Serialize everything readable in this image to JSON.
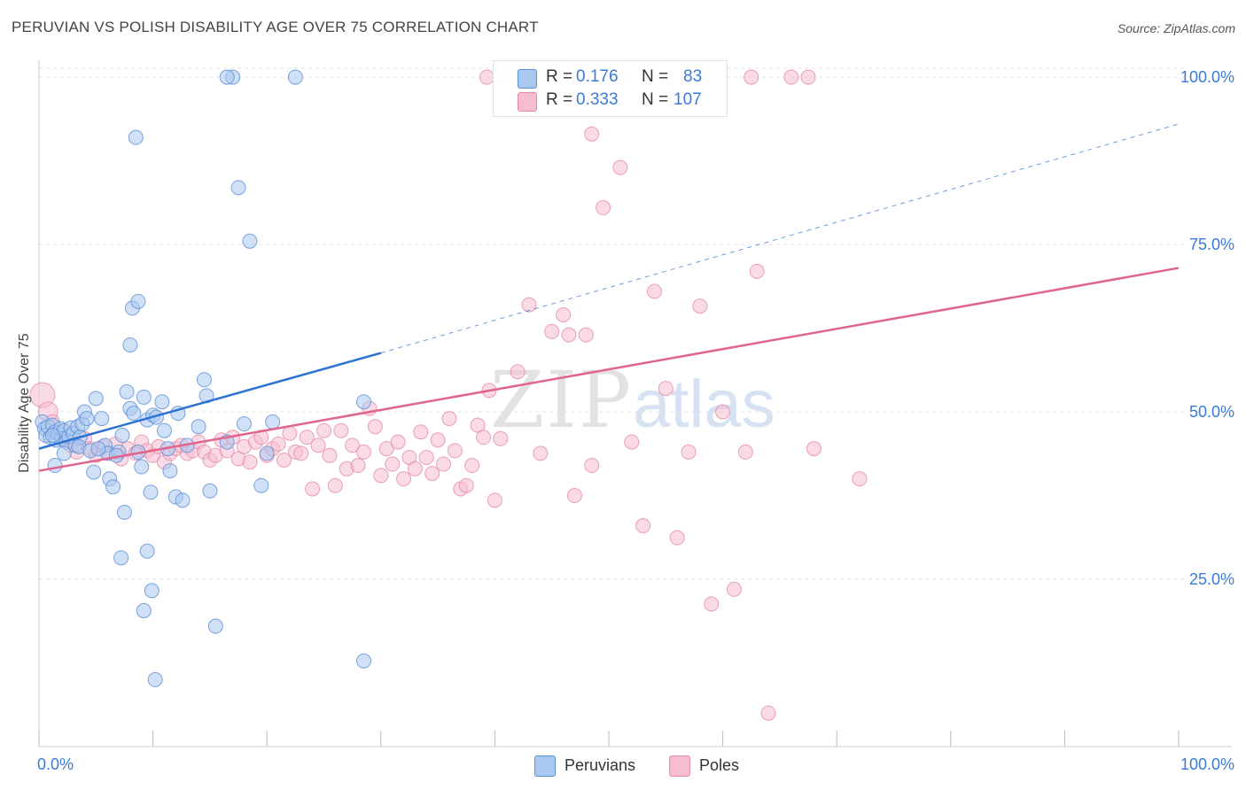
{
  "title": "PERUVIAN VS POLISH DISABILITY AGE OVER 75 CORRELATION CHART",
  "source": "Source: ZipAtlas.com",
  "watermark": {
    "zip": "ZIP",
    "atlas": "atlas"
  },
  "legend_stats": {
    "r_label": "R =",
    "n_label": "N =",
    "peruvians": {
      "r": "0.176",
      "n": "83"
    },
    "poles": {
      "r": "0.333",
      "n": "107"
    }
  },
  "legend_bottom": {
    "peruvians": "Peruvians",
    "poles": "Poles"
  },
  "colors": {
    "peruvians_fill": "#a9c8f0",
    "peruvians_stroke": "#5b8fd6",
    "peruvians_line": "#2d72d2",
    "poles_fill": "#f6bdd0",
    "poles_stroke": "#e58aa8",
    "poles_line": "#e0648d",
    "tick_label": "#3a7bd5",
    "grid": "#e3e3e3"
  },
  "chart_data": {
    "type": "scatter",
    "title": "PERUVIAN VS POLISH DISABILITY AGE OVER 75 CORRELATION CHART",
    "xlabel": "",
    "ylabel": "Disability Age Over 75",
    "xlim": [
      0,
      100
    ],
    "ylim": [
      0,
      102
    ],
    "x_tick_labels": [
      "0.0%",
      "100.0%"
    ],
    "y_ticks": [
      25,
      50,
      75,
      100
    ],
    "y_tick_labels": [
      "25.0%",
      "50.0%",
      "75.0%",
      "100.0%"
    ],
    "series": [
      {
        "name": "Peruvians",
        "r": 0.176,
        "n": 83,
        "trend": {
          "x0": 0,
          "y0": 44.5,
          "x1": 30,
          "y1": 58.8,
          "dashed_to_x": 100,
          "dashed_to_y": 93
        },
        "points": [
          [
            0.3,
            48.5
          ],
          [
            0.5,
            47.5
          ],
          [
            0.6,
            46.5
          ],
          [
            0.8,
            47.8
          ],
          [
            1,
            46.2
          ],
          [
            1.2,
            48
          ],
          [
            1.4,
            47
          ],
          [
            1.5,
            45.8
          ],
          [
            1.7,
            46.8
          ],
          [
            1.9,
            47.5
          ],
          [
            2,
            46
          ],
          [
            2.2,
            47.2
          ],
          [
            2.4,
            45.5
          ],
          [
            2.6,
            46.3
          ],
          [
            2.8,
            47.6
          ],
          [
            3,
            46.8
          ],
          [
            3.2,
            45
          ],
          [
            3.4,
            47.8
          ],
          [
            3.6,
            46.2
          ],
          [
            3.8,
            48.2
          ],
          [
            4,
            50
          ],
          [
            4.2,
            49
          ],
          [
            3.5,
            44.8
          ],
          [
            4.5,
            44.2
          ],
          [
            4.8,
            41
          ],
          [
            5,
            52
          ],
          [
            5.5,
            49
          ],
          [
            5.8,
            45
          ],
          [
            6,
            43.8
          ],
          [
            6.2,
            40
          ],
          [
            6.5,
            38.8
          ],
          [
            7,
            44
          ],
          [
            7.3,
            46.5
          ],
          [
            7.5,
            35
          ],
          [
            7.7,
            53
          ],
          [
            8,
            50.5
          ],
          [
            8.3,
            49.8
          ],
          [
            8.7,
            44
          ],
          [
            9,
            41.8
          ],
          [
            9.2,
            52.2
          ],
          [
            9.5,
            48.8
          ],
          [
            9.8,
            38
          ],
          [
            10,
            49.5
          ],
          [
            10.3,
            49.2
          ],
          [
            10.8,
            51.5
          ],
          [
            11,
            47.2
          ],
          [
            11.3,
            44.5
          ],
          [
            11.5,
            41.2
          ],
          [
            12,
            37.3
          ],
          [
            12.2,
            49.8
          ],
          [
            12.6,
            36.8
          ],
          [
            13,
            45
          ],
          [
            14,
            47.8
          ],
          [
            14.5,
            54.8
          ],
          [
            14.7,
            52.4
          ],
          [
            15,
            38.2
          ],
          [
            15.5,
            18
          ],
          [
            16.5,
            45.5
          ],
          [
            17,
            100
          ],
          [
            17.5,
            83.5
          ],
          [
            18,
            48.2
          ],
          [
            18.5,
            75.5
          ],
          [
            19.5,
            39
          ],
          [
            20,
            43.8
          ],
          [
            20.5,
            48.5
          ],
          [
            16.5,
            100
          ],
          [
            22.5,
            100
          ],
          [
            8.2,
            65.5
          ],
          [
            8.7,
            66.5
          ],
          [
            8,
            60
          ],
          [
            8.5,
            91
          ],
          [
            7.2,
            28.2
          ],
          [
            9.2,
            20.3
          ],
          [
            9.5,
            29.2
          ],
          [
            9.9,
            23.3
          ],
          [
            10.2,
            10
          ],
          [
            28.5,
            51.5
          ],
          [
            28.5,
            12.8
          ],
          [
            2.2,
            43.8
          ],
          [
            1.2,
            46.5
          ],
          [
            6.8,
            43.5
          ],
          [
            1.4,
            42
          ],
          [
            5.2,
            44.5
          ]
        ]
      },
      {
        "name": "Poles",
        "r": 0.333,
        "n": 107,
        "trend": {
          "x0": 0,
          "y0": 41.2,
          "x1": 100,
          "y1": 71.5
        },
        "points": [
          [
            0.3,
            52.5
          ],
          [
            0.8,
            50
          ],
          [
            1.2,
            48.5
          ],
          [
            1.8,
            47
          ],
          [
            2.2,
            46
          ],
          [
            2.8,
            45
          ],
          [
            3.3,
            44
          ],
          [
            4,
            46
          ],
          [
            4.5,
            44.5
          ],
          [
            5,
            43.5
          ],
          [
            5.6,
            44.8
          ],
          [
            6.2,
            43.8
          ],
          [
            6.7,
            45.2
          ],
          [
            7.2,
            43
          ],
          [
            7.8,
            44.5
          ],
          [
            8.5,
            43.8
          ],
          [
            9,
            45.5
          ],
          [
            9.5,
            44.2
          ],
          [
            10,
            43.5
          ],
          [
            10.5,
            44.8
          ],
          [
            11,
            42.5
          ],
          [
            11.5,
            43.8
          ],
          [
            12,
            44.5
          ],
          [
            12.5,
            45
          ],
          [
            13,
            43.8
          ],
          [
            13.5,
            44.2
          ],
          [
            14,
            45.5
          ],
          [
            14.5,
            44
          ],
          [
            15,
            42.8
          ],
          [
            15.5,
            43.5
          ],
          [
            16,
            45.8
          ],
          [
            16.5,
            44.2
          ],
          [
            17,
            46.2
          ],
          [
            17.5,
            43
          ],
          [
            18,
            44.8
          ],
          [
            18.5,
            42.5
          ],
          [
            19,
            45.5
          ],
          [
            19.5,
            46.2
          ],
          [
            20,
            43.5
          ],
          [
            20.5,
            44.5
          ],
          [
            21,
            45.2
          ],
          [
            21.5,
            42.8
          ],
          [
            22,
            46.8
          ],
          [
            22.5,
            44
          ],
          [
            23,
            43.8
          ],
          [
            23.5,
            46.2
          ],
          [
            24,
            38.5
          ],
          [
            24.5,
            45
          ],
          [
            25,
            47.2
          ],
          [
            25.5,
            43.5
          ],
          [
            26,
            39
          ],
          [
            26.5,
            47.2
          ],
          [
            27,
            41.5
          ],
          [
            27.5,
            45
          ],
          [
            28,
            42
          ],
          [
            28.5,
            44
          ],
          [
            29,
            50.5
          ],
          [
            29.5,
            47.8
          ],
          [
            30,
            40.5
          ],
          [
            30.5,
            44.5
          ],
          [
            31,
            42.2
          ],
          [
            31.5,
            45.5
          ],
          [
            32,
            40
          ],
          [
            32.5,
            43.2
          ],
          [
            33,
            41.5
          ],
          [
            33.5,
            47
          ],
          [
            34,
            43.2
          ],
          [
            34.5,
            40.8
          ],
          [
            35,
            45.8
          ],
          [
            35.5,
            42.2
          ],
          [
            36,
            49
          ],
          [
            36.5,
            44.2
          ],
          [
            37,
            38.5
          ],
          [
            37.5,
            39
          ],
          [
            38,
            42
          ],
          [
            38.5,
            48
          ],
          [
            39,
            46.2
          ],
          [
            39.5,
            53.2
          ],
          [
            40,
            36.8
          ],
          [
            40.5,
            46
          ],
          [
            42,
            56
          ],
          [
            43,
            66
          ],
          [
            44,
            43.8
          ],
          [
            45,
            62
          ],
          [
            46,
            64.5
          ],
          [
            46.5,
            61.5
          ],
          [
            47,
            37.5
          ],
          [
            48,
            61.5
          ],
          [
            48.5,
            42
          ],
          [
            49.5,
            80.5
          ],
          [
            51,
            86.5
          ],
          [
            52,
            45.5
          ],
          [
            53,
            33
          ],
          [
            54,
            68
          ],
          [
            55,
            53.5
          ],
          [
            56,
            31.2
          ],
          [
            57,
            44
          ],
          [
            58,
            65.8
          ],
          [
            59,
            21.3
          ],
          [
            60,
            50
          ],
          [
            61,
            23.5
          ],
          [
            62,
            44
          ],
          [
            63,
            71
          ],
          [
            64,
            5
          ],
          [
            68,
            44.5
          ],
          [
            72,
            40
          ],
          [
            48.5,
            91.5
          ]
        ]
      }
    ],
    "top_row_points": {
      "Poles": [
        [
          39.3,
          100
        ],
        [
          40.8,
          100
        ],
        [
          47.5,
          100
        ],
        [
          51,
          100
        ],
        [
          57,
          100
        ],
        [
          62.5,
          100
        ],
        [
          66,
          100
        ],
        [
          67.5,
          100
        ]
      ]
    }
  }
}
